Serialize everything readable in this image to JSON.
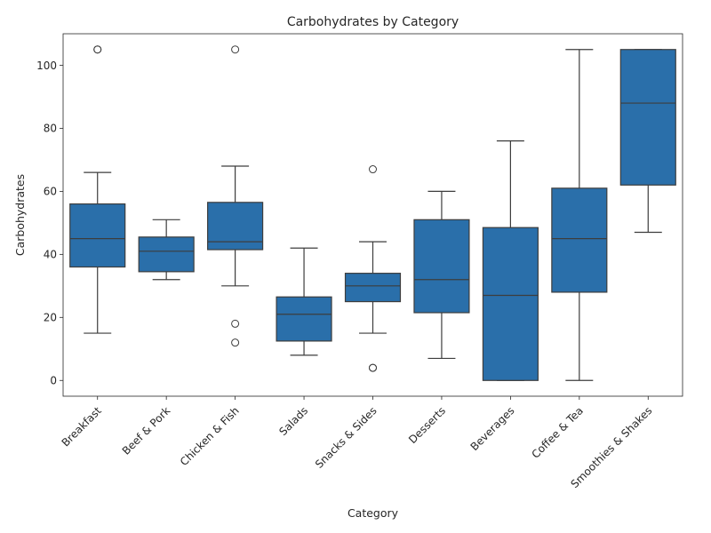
{
  "chart_data": {
    "type": "box",
    "title": "Carbohydrates by Category",
    "xlabel": "Category",
    "ylabel": "Carbohydrates",
    "ylim": [
      -5,
      110
    ],
    "yticks": [
      0,
      20,
      40,
      60,
      80,
      100
    ],
    "grid": false,
    "box_color": "#2a6faa",
    "categories": [
      "Breakfast",
      "Beef & Pork",
      "Chicken & Fish",
      "Salads",
      "Snacks & Sides",
      "Desserts",
      "Beverages",
      "Coffee & Tea",
      "Smoothies & Shakes"
    ],
    "boxes": [
      {
        "whisker_low": 15,
        "q1": 36,
        "median": 45,
        "q3": 56,
        "whisker_high": 66,
        "outliers": [
          105,
          105
        ]
      },
      {
        "whisker_low": 32,
        "q1": 34.5,
        "median": 41,
        "q3": 45.5,
        "whisker_high": 51,
        "outliers": []
      },
      {
        "whisker_low": 30,
        "q1": 41.5,
        "median": 44,
        "q3": 56.5,
        "whisker_high": 68,
        "outliers": [
          105,
          18,
          12
        ]
      },
      {
        "whisker_low": 8,
        "q1": 12.5,
        "median": 21,
        "q3": 26.5,
        "whisker_high": 42,
        "outliers": []
      },
      {
        "whisker_low": 15,
        "q1": 25,
        "median": 30,
        "q3": 34,
        "whisker_high": 44,
        "outliers": [
          67,
          4,
          4
        ]
      },
      {
        "whisker_low": 7,
        "q1": 21.5,
        "median": 32,
        "q3": 51,
        "whisker_high": 60,
        "outliers": []
      },
      {
        "whisker_low": 0,
        "q1": 0,
        "median": 27,
        "q3": 48.5,
        "whisker_high": 76,
        "outliers": []
      },
      {
        "whisker_low": 0,
        "q1": 28,
        "median": 45,
        "q3": 61,
        "whisker_high": 105,
        "outliers": []
      },
      {
        "whisker_low": 47,
        "q1": 62,
        "median": 88,
        "q3": 105,
        "whisker_high": 105,
        "outliers": []
      }
    ]
  }
}
